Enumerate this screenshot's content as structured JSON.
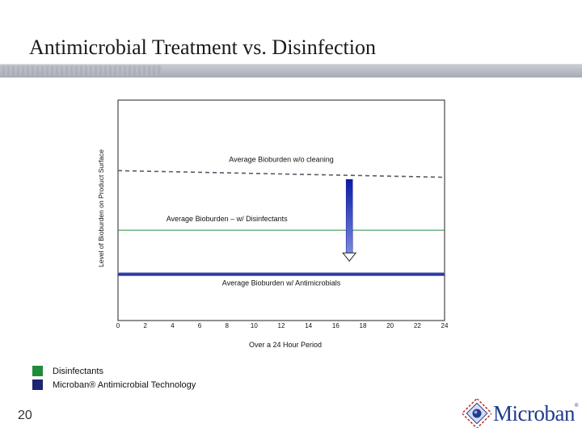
{
  "slide": {
    "title": "Antimicrobial Treatment vs. Disinfection",
    "number": "20"
  },
  "legend": {
    "items": [
      {
        "label": "Disinfectants",
        "color": "#1f8c3b"
      },
      {
        "label": "Microban® Antimicrobial Technology",
        "color": "#1d2470"
      }
    ]
  },
  "logo": {
    "text": "Microban",
    "tm": "®"
  },
  "colors": {
    "dashed_line": "#555a66",
    "disinfectant_line": "#2a8a3a",
    "antimicrobial_band": "#2b3aa0",
    "arrow_top": "#0a1aa8",
    "arrow_bottom": "#7a8ae0"
  },
  "chart_data": {
    "type": "line",
    "title": "",
    "xlabel": "Over a 24 Hour Period",
    "ylabel": "Level of Bioburden on Product Surface",
    "xlim": [
      0,
      24
    ],
    "ylim": [
      0,
      100
    ],
    "x_ticks": [
      0,
      2,
      4,
      6,
      8,
      10,
      12,
      14,
      16,
      18,
      20,
      22,
      24
    ],
    "x_tick_labels": [
      "0",
      "2",
      "4",
      "6",
      "8",
      "10",
      "12",
      "14",
      "16",
      "18",
      "20",
      "22",
      "24"
    ],
    "series": [
      {
        "name": "Average Bioburden w/o cleaning",
        "style": "dashed",
        "x": [
          0,
          24
        ],
        "y": [
          68,
          65
        ]
      },
      {
        "name": "Average Bioburden – w/ Disinfectants",
        "style": "solid",
        "x": [
          0,
          24
        ],
        "y": [
          41,
          41
        ]
      },
      {
        "name": "Average Bioburden w/ Antimicrobials",
        "style": "band",
        "x": [
          0,
          24
        ],
        "y": [
          21,
          21
        ]
      }
    ],
    "annotations": [
      {
        "text": "Average Bioburden w/o cleaning",
        "x": 12,
        "y": 72
      },
      {
        "text": "Average Bioburden – w/ Disinfectants",
        "x": 8,
        "y": 45
      },
      {
        "text": "Average Bioburden w/ Antimicrobials",
        "x": 12,
        "y": 16
      }
    ],
    "arrow": {
      "x": 17,
      "y_from": 64,
      "y_to": 27
    }
  }
}
